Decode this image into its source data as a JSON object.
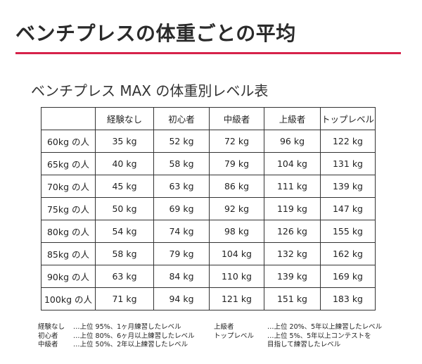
{
  "header": {
    "title": "ベンチプレスの体重ごとの平均",
    "accent_color": "#d6224a"
  },
  "table": {
    "title": "ベンチプレス MAX の体重別レベル表",
    "columns": [
      "",
      "経験なし",
      "初心者",
      "中級者",
      "上級者",
      "トップレベル"
    ],
    "rows": [
      {
        "label": "60kg の人",
        "values": [
          "35 kg",
          "52 kg",
          "72 kg",
          "96 kg",
          "122 kg"
        ]
      },
      {
        "label": "65kg の人",
        "values": [
          "40 kg",
          "58 kg",
          "79 kg",
          "104 kg",
          "131 kg"
        ]
      },
      {
        "label": "70kg の人",
        "values": [
          "45 kg",
          "63 kg",
          "86 kg",
          "111 kg",
          "139 kg"
        ]
      },
      {
        "label": "75kg の人",
        "values": [
          "50 kg",
          "69 kg",
          "92 kg",
          "119 kg",
          "147 kg"
        ]
      },
      {
        "label": "80kg の人",
        "values": [
          "54 kg",
          "74 kg",
          "98 kg",
          "126 kg",
          "155 kg"
        ]
      },
      {
        "label": "85kg の人",
        "values": [
          "58 kg",
          "79 kg",
          "104 kg",
          "132 kg",
          "162 kg"
        ]
      },
      {
        "label": "90kg の人",
        "values": [
          "63 kg",
          "84 kg",
          "110 kg",
          "139 kg",
          "169 kg"
        ]
      },
      {
        "label": "100kg の人",
        "values": [
          "71 kg",
          "94 kg",
          "121 kg",
          "151 kg",
          "183 kg"
        ]
      }
    ]
  },
  "notes": {
    "left": [
      {
        "key": "経験なし",
        "text": "…上位 95%、1ヶ月練習したレベル"
      },
      {
        "key": "初心者",
        "text": "…上位 80%、6ヶ月以上練習したレベル"
      },
      {
        "key": "中級者",
        "text": "…上位 50%、2年以上練習したレベル"
      }
    ],
    "right": [
      {
        "key": "上級者",
        "text": "…上位 20%、5年以上練習したレベル"
      },
      {
        "key": "トップレベル",
        "text": "…上位 5%、5年以上コンテストを"
      },
      {
        "key": "",
        "text": "目指して練習したレベル"
      }
    ]
  }
}
